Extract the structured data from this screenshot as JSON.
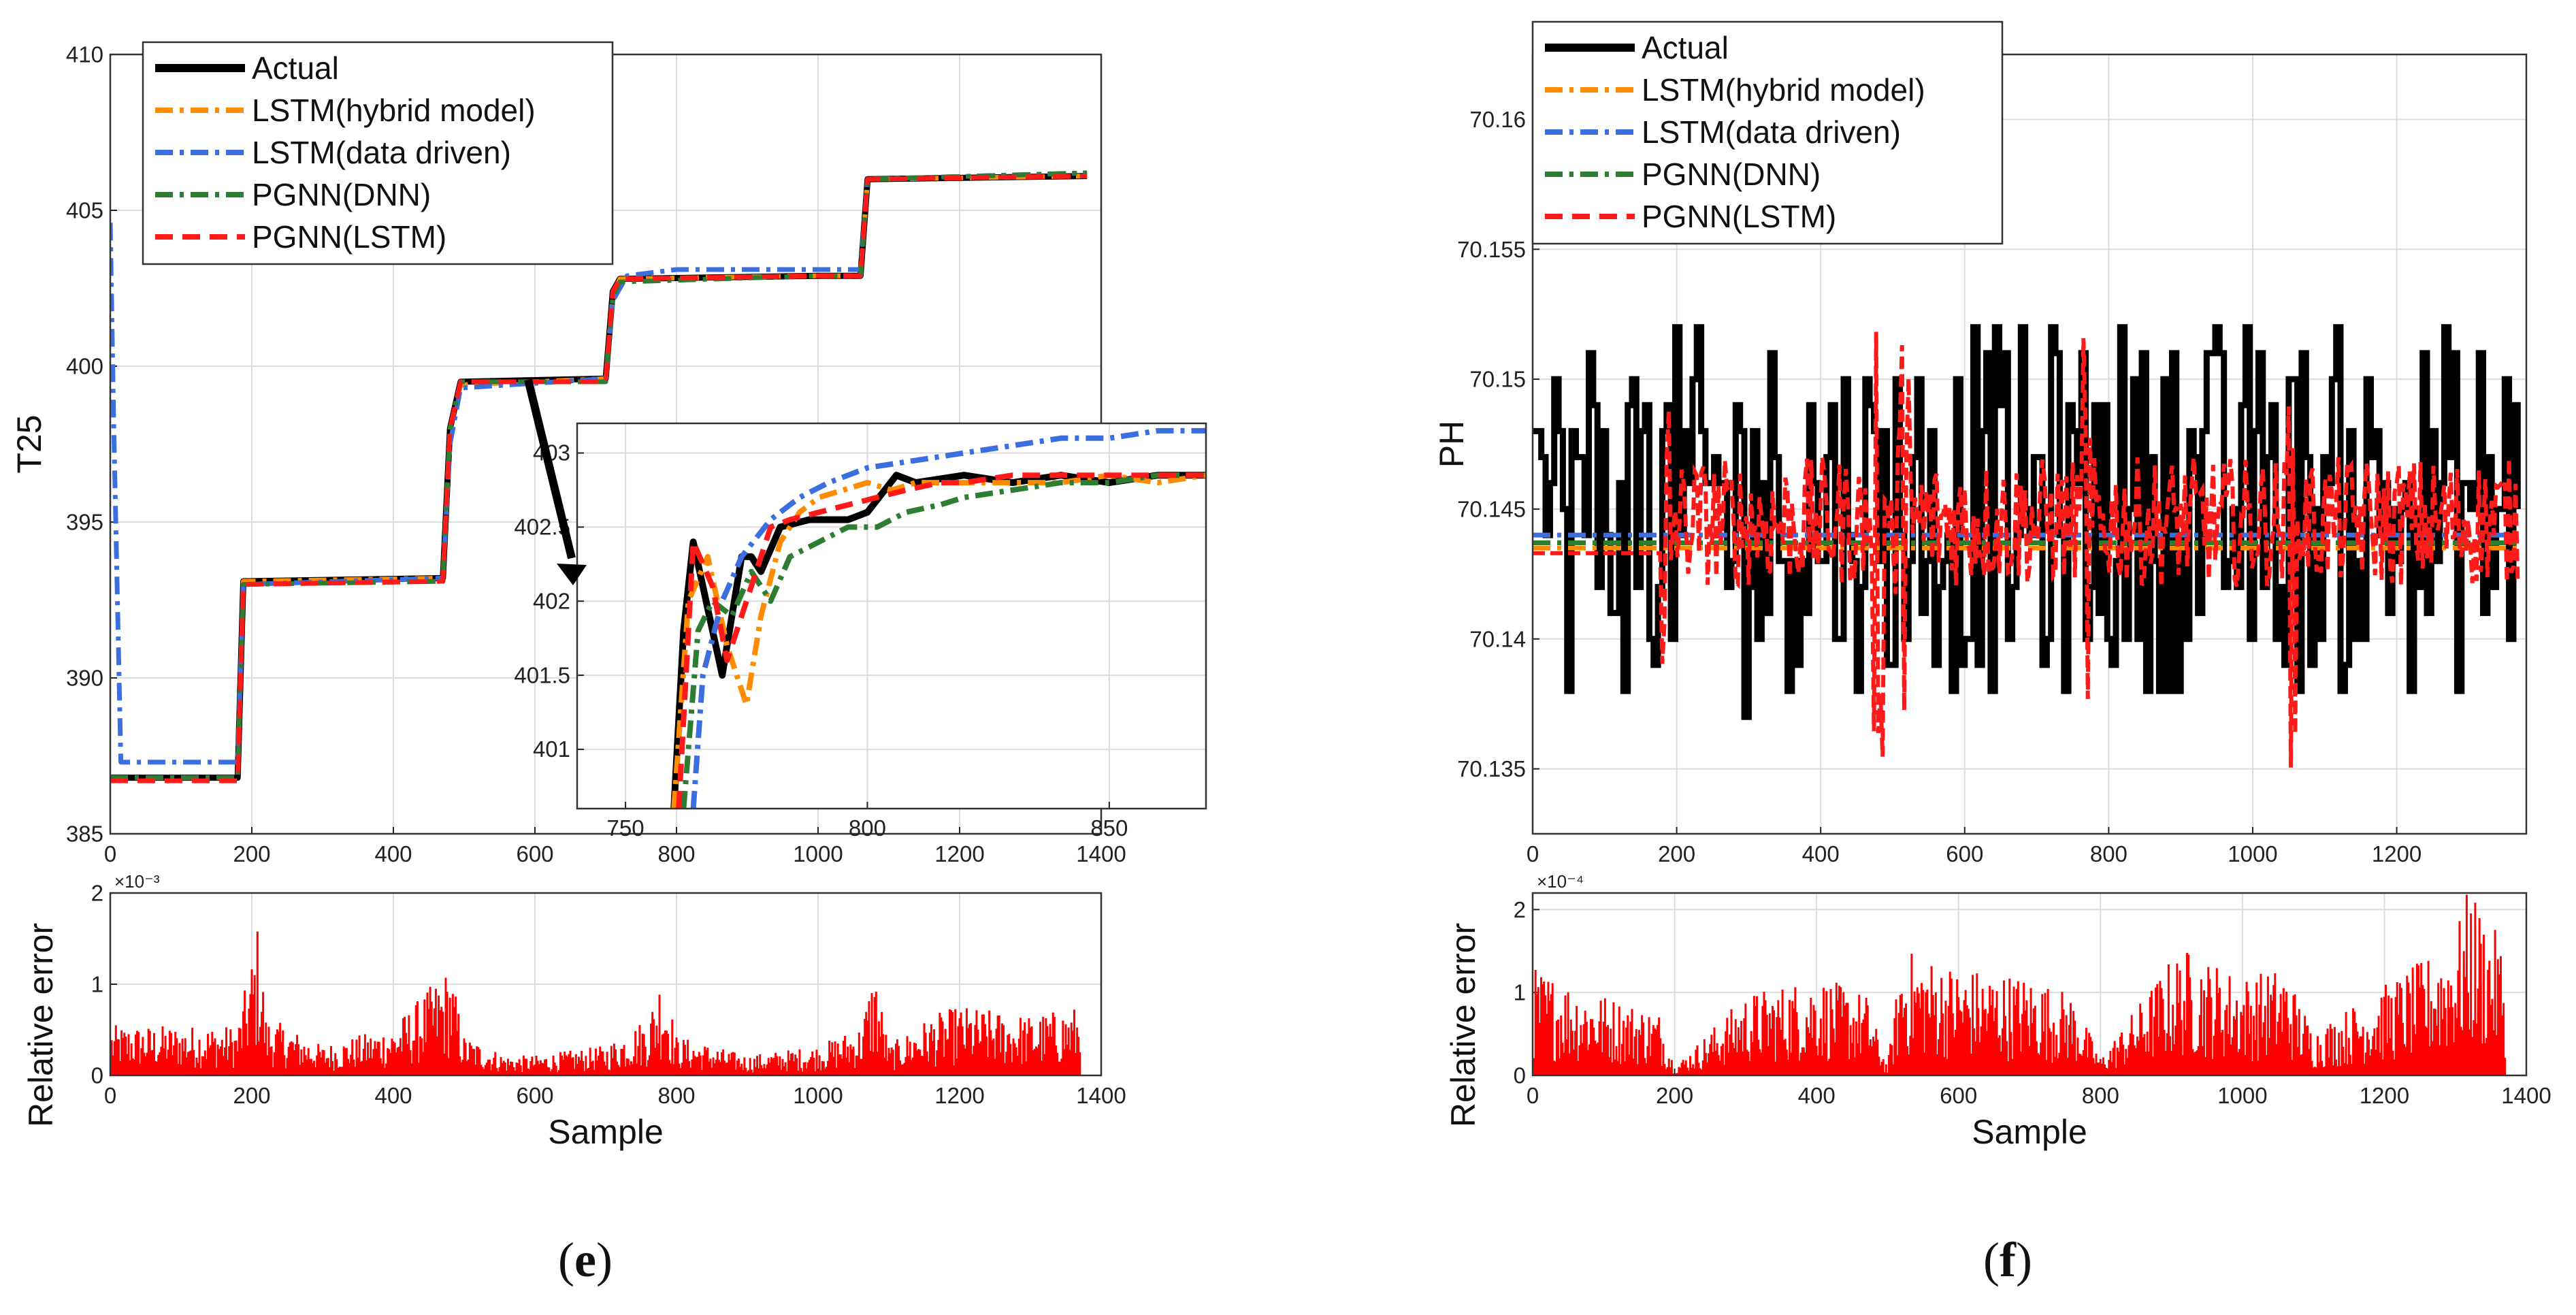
{
  "chart_data": [
    {
      "id": "e-main",
      "type": "line",
      "ylabel": "T25",
      "xlim": [
        0,
        1400
      ],
      "ylim": [
        385,
        410
      ],
      "xticks": [
        0,
        200,
        400,
        600,
        800,
        1000,
        1200,
        1400
      ],
      "yticks": [
        385,
        390,
        395,
        400,
        405,
        410
      ],
      "grid": true,
      "legend": "top-left",
      "series": [
        {
          "name": "Actual",
          "color": "#000000",
          "style": "solid",
          "x": [
            0,
            5,
            180,
            188,
            470,
            480,
            495,
            700,
            710,
            720,
            1000,
            1040,
            1060,
            1070,
            1380
          ],
          "y": [
            386.8,
            386.8,
            386.8,
            393.1,
            393.2,
            398.0,
            399.5,
            399.6,
            402.4,
            402.8,
            402.9,
            402.9,
            402.9,
            406.0,
            406.1
          ]
        },
        {
          "name": "LSTM(hybrid model)",
          "color": "#ff8c00",
          "style": "dashdot",
          "x": [
            0,
            5,
            180,
            188,
            470,
            480,
            495,
            700,
            710,
            720,
            1000,
            1040,
            1060,
            1070,
            1380
          ],
          "y": [
            386.8,
            386.8,
            386.8,
            393.1,
            393.2,
            398.0,
            399.4,
            399.6,
            402.3,
            402.8,
            402.9,
            402.9,
            402.9,
            406.0,
            406.1
          ]
        },
        {
          "name": "LSTM(data driven)",
          "color": "#3b6fe0",
          "style": "dashdot",
          "x": [
            0,
            5,
            15,
            25,
            180,
            188,
            470,
            480,
            495,
            700,
            710,
            730,
            800,
            1000,
            1060,
            1070,
            1380
          ],
          "y": [
            404.6,
            398.0,
            387.3,
            387.3,
            387.3,
            393.0,
            393.2,
            397.5,
            399.3,
            399.6,
            402.1,
            402.9,
            403.1,
            403.1,
            403.1,
            406.0,
            406.2
          ]
        },
        {
          "name": "PGNN(DNN)",
          "color": "#2e7d32",
          "style": "dashdot",
          "x": [
            0,
            5,
            180,
            188,
            470,
            480,
            495,
            700,
            710,
            720,
            1000,
            1040,
            1060,
            1070,
            1380
          ],
          "y": [
            386.8,
            386.8,
            386.8,
            393.0,
            393.1,
            398.0,
            399.5,
            399.5,
            402.2,
            402.7,
            402.9,
            402.9,
            402.9,
            406.0,
            406.2
          ]
        },
        {
          "name": "PGNN(LSTM)",
          "color": "#ff1a1a",
          "style": "dashed",
          "x": [
            0,
            5,
            180,
            188,
            470,
            480,
            495,
            700,
            710,
            720,
            1000,
            1040,
            1060,
            1070,
            1380
          ],
          "y": [
            386.7,
            386.7,
            386.7,
            393.0,
            393.1,
            398.0,
            399.5,
            399.5,
            402.4,
            402.8,
            402.9,
            402.9,
            402.9,
            406.0,
            406.1
          ]
        }
      ]
    },
    {
      "id": "e-inset",
      "type": "line",
      "xlim": [
        740,
        870
      ],
      "ylim": [
        400.6,
        403.2
      ],
      "xticks": [
        750,
        800,
        850
      ],
      "yticks": [
        401,
        401.5,
        402,
        402.5,
        403
      ],
      "grid": true,
      "series": [
        {
          "name": "Actual",
          "color": "#000000",
          "style": "solid",
          "x": [
            760,
            762,
            764,
            766,
            770,
            772,
            774,
            776,
            778,
            782,
            788,
            792,
            796,
            800,
            806,
            810,
            820,
            830,
            840,
            850,
            860,
            870
          ],
          "y": [
            400.6,
            401.8,
            402.4,
            402.1,
            401.5,
            401.9,
            402.3,
            402.3,
            402.2,
            402.5,
            402.55,
            402.55,
            402.55,
            402.6,
            402.85,
            402.8,
            402.85,
            402.8,
            402.85,
            402.8,
            402.85,
            402.85
          ]
        },
        {
          "name": "LSTM(hybrid model)",
          "color": "#ff8c00",
          "style": "dashdot",
          "x": [
            760,
            763,
            767,
            771,
            775,
            778,
            782,
            786,
            790,
            795,
            800,
            805,
            810,
            820,
            830,
            840,
            850,
            860,
            870
          ],
          "y": [
            400.6,
            402.0,
            402.3,
            401.7,
            401.3,
            401.9,
            402.4,
            402.6,
            402.7,
            402.75,
            402.8,
            402.75,
            402.8,
            402.8,
            402.8,
            402.8,
            402.85,
            402.8,
            402.85
          ]
        },
        {
          "name": "LSTM(data driven)",
          "color": "#3b6fe0",
          "style": "dashdot",
          "x": [
            764,
            766,
            770,
            774,
            780,
            786,
            792,
            800,
            810,
            820,
            830,
            840,
            850,
            860,
            870
          ],
          "y": [
            400.6,
            401.5,
            402.0,
            402.3,
            402.55,
            402.7,
            402.8,
            402.9,
            402.95,
            403.0,
            403.05,
            403.1,
            403.1,
            403.15,
            403.15
          ]
        },
        {
          "name": "PGNN(DNN)",
          "color": "#2e7d32",
          "style": "dashdot",
          "x": [
            762,
            765,
            768,
            772,
            776,
            780,
            784,
            790,
            796,
            802,
            808,
            815,
            820,
            830,
            840,
            850,
            860,
            870
          ],
          "y": [
            400.6,
            401.8,
            402.0,
            401.9,
            402.2,
            402.0,
            402.3,
            402.4,
            402.5,
            402.5,
            402.6,
            402.65,
            402.7,
            402.75,
            402.8,
            402.8,
            402.85,
            402.85
          ]
        },
        {
          "name": "PGNN(LSTM)",
          "color": "#ff1a1a",
          "style": "dashed",
          "x": [
            761,
            764,
            768,
            771,
            774,
            777,
            780,
            784,
            790,
            796,
            802,
            808,
            815,
            820,
            830,
            840,
            850,
            860,
            870
          ],
          "y": [
            400.6,
            402.4,
            402.1,
            401.6,
            401.9,
            402.2,
            402.5,
            402.55,
            402.6,
            402.65,
            402.7,
            402.75,
            402.8,
            402.8,
            402.85,
            402.85,
            402.85,
            402.85,
            402.85
          ]
        }
      ]
    },
    {
      "id": "e-error",
      "type": "bar",
      "ylabel": "Relative error",
      "xlabel": "Sample",
      "multiplier": "×10⁻³",
      "xlim": [
        0,
        1400
      ],
      "ylim": [
        0,
        2
      ],
      "xticks": [
        0,
        200,
        400,
        600,
        800,
        1000,
        1200,
        1400
      ],
      "yticks": [
        0,
        1,
        2
      ],
      "grid": true,
      "color": "#ff0000",
      "x": [
        0,
        100,
        180,
        200,
        210,
        220,
        300,
        400,
        480,
        500,
        560,
        600,
        700,
        760,
        780,
        800,
        900,
        1000,
        1060,
        1080,
        1100,
        1160,
        1200,
        1300,
        1370
      ],
      "values": [
        0.5,
        0.5,
        0.5,
        1.2,
        1.6,
        0.6,
        0.3,
        0.5,
        1.1,
        0.4,
        0.2,
        0.2,
        0.3,
        0.6,
        1.1,
        0.4,
        0.2,
        0.3,
        0.5,
        1.1,
        0.3,
        0.6,
        0.7,
        0.6,
        0.7
      ]
    },
    {
      "id": "f-main",
      "type": "line",
      "ylabel": "PH",
      "xlim": [
        0,
        1380
      ],
      "ylim": [
        70.1325,
        70.1625
      ],
      "xticks": [
        0,
        200,
        400,
        600,
        800,
        1000,
        1200
      ],
      "yticks": [
        70.135,
        70.14,
        70.145,
        70.15,
        70.155,
        70.16
      ],
      "grid": true,
      "legend": "top-left",
      "series": [
        {
          "name": "Actual",
          "color": "#000000",
          "style": "solid",
          "band": [
            70.138,
            70.152
          ],
          "min": 70.133,
          "max": 70.154
        },
        {
          "name": "LSTM(hybrid model)",
          "color": "#ff8c00",
          "style": "dashdot",
          "level": 70.1435
        },
        {
          "name": "LSTM(data driven)",
          "color": "#3b6fe0",
          "style": "dashdot",
          "level": 70.144
        },
        {
          "name": "PGNN(DNN)",
          "color": "#2e7d32",
          "style": "dashdot",
          "level": 70.1437
        },
        {
          "name": "PGNN(LSTM)",
          "color": "#ff1a1a",
          "style": "dashed",
          "level": 70.1433,
          "band": [
            70.142,
            70.147
          ]
        }
      ]
    },
    {
      "id": "f-error",
      "type": "bar",
      "ylabel": "Relative error",
      "xlabel": "Sample",
      "multiplier": "×10⁻⁴",
      "xlim": [
        0,
        1400
      ],
      "ylim": [
        0,
        2.2
      ],
      "xticks": [
        0,
        200,
        400,
        600,
        800,
        1000,
        1200,
        1400
      ],
      "yticks": [
        0,
        1,
        2
      ],
      "grid": true,
      "color": "#ff0000",
      "x": [
        0,
        100,
        180,
        200,
        300,
        400,
        470,
        500,
        520,
        600,
        700,
        760,
        800,
        900,
        920,
        1000,
        1060,
        1100,
        1200,
        1260,
        1300,
        1320,
        1370
      ],
      "values": [
        1.2,
        0.9,
        0.7,
        0.1,
        0.9,
        1.1,
        0.9,
        0.1,
        1.4,
        1.2,
        1.1,
        0.9,
        0.2,
        1.3,
        1.4,
        1.1,
        1.2,
        0.5,
        1.0,
        1.3,
        1.6,
        2.1,
        1.4
      ]
    }
  ],
  "sub_labels": {
    "e": "e",
    "f": "f"
  }
}
